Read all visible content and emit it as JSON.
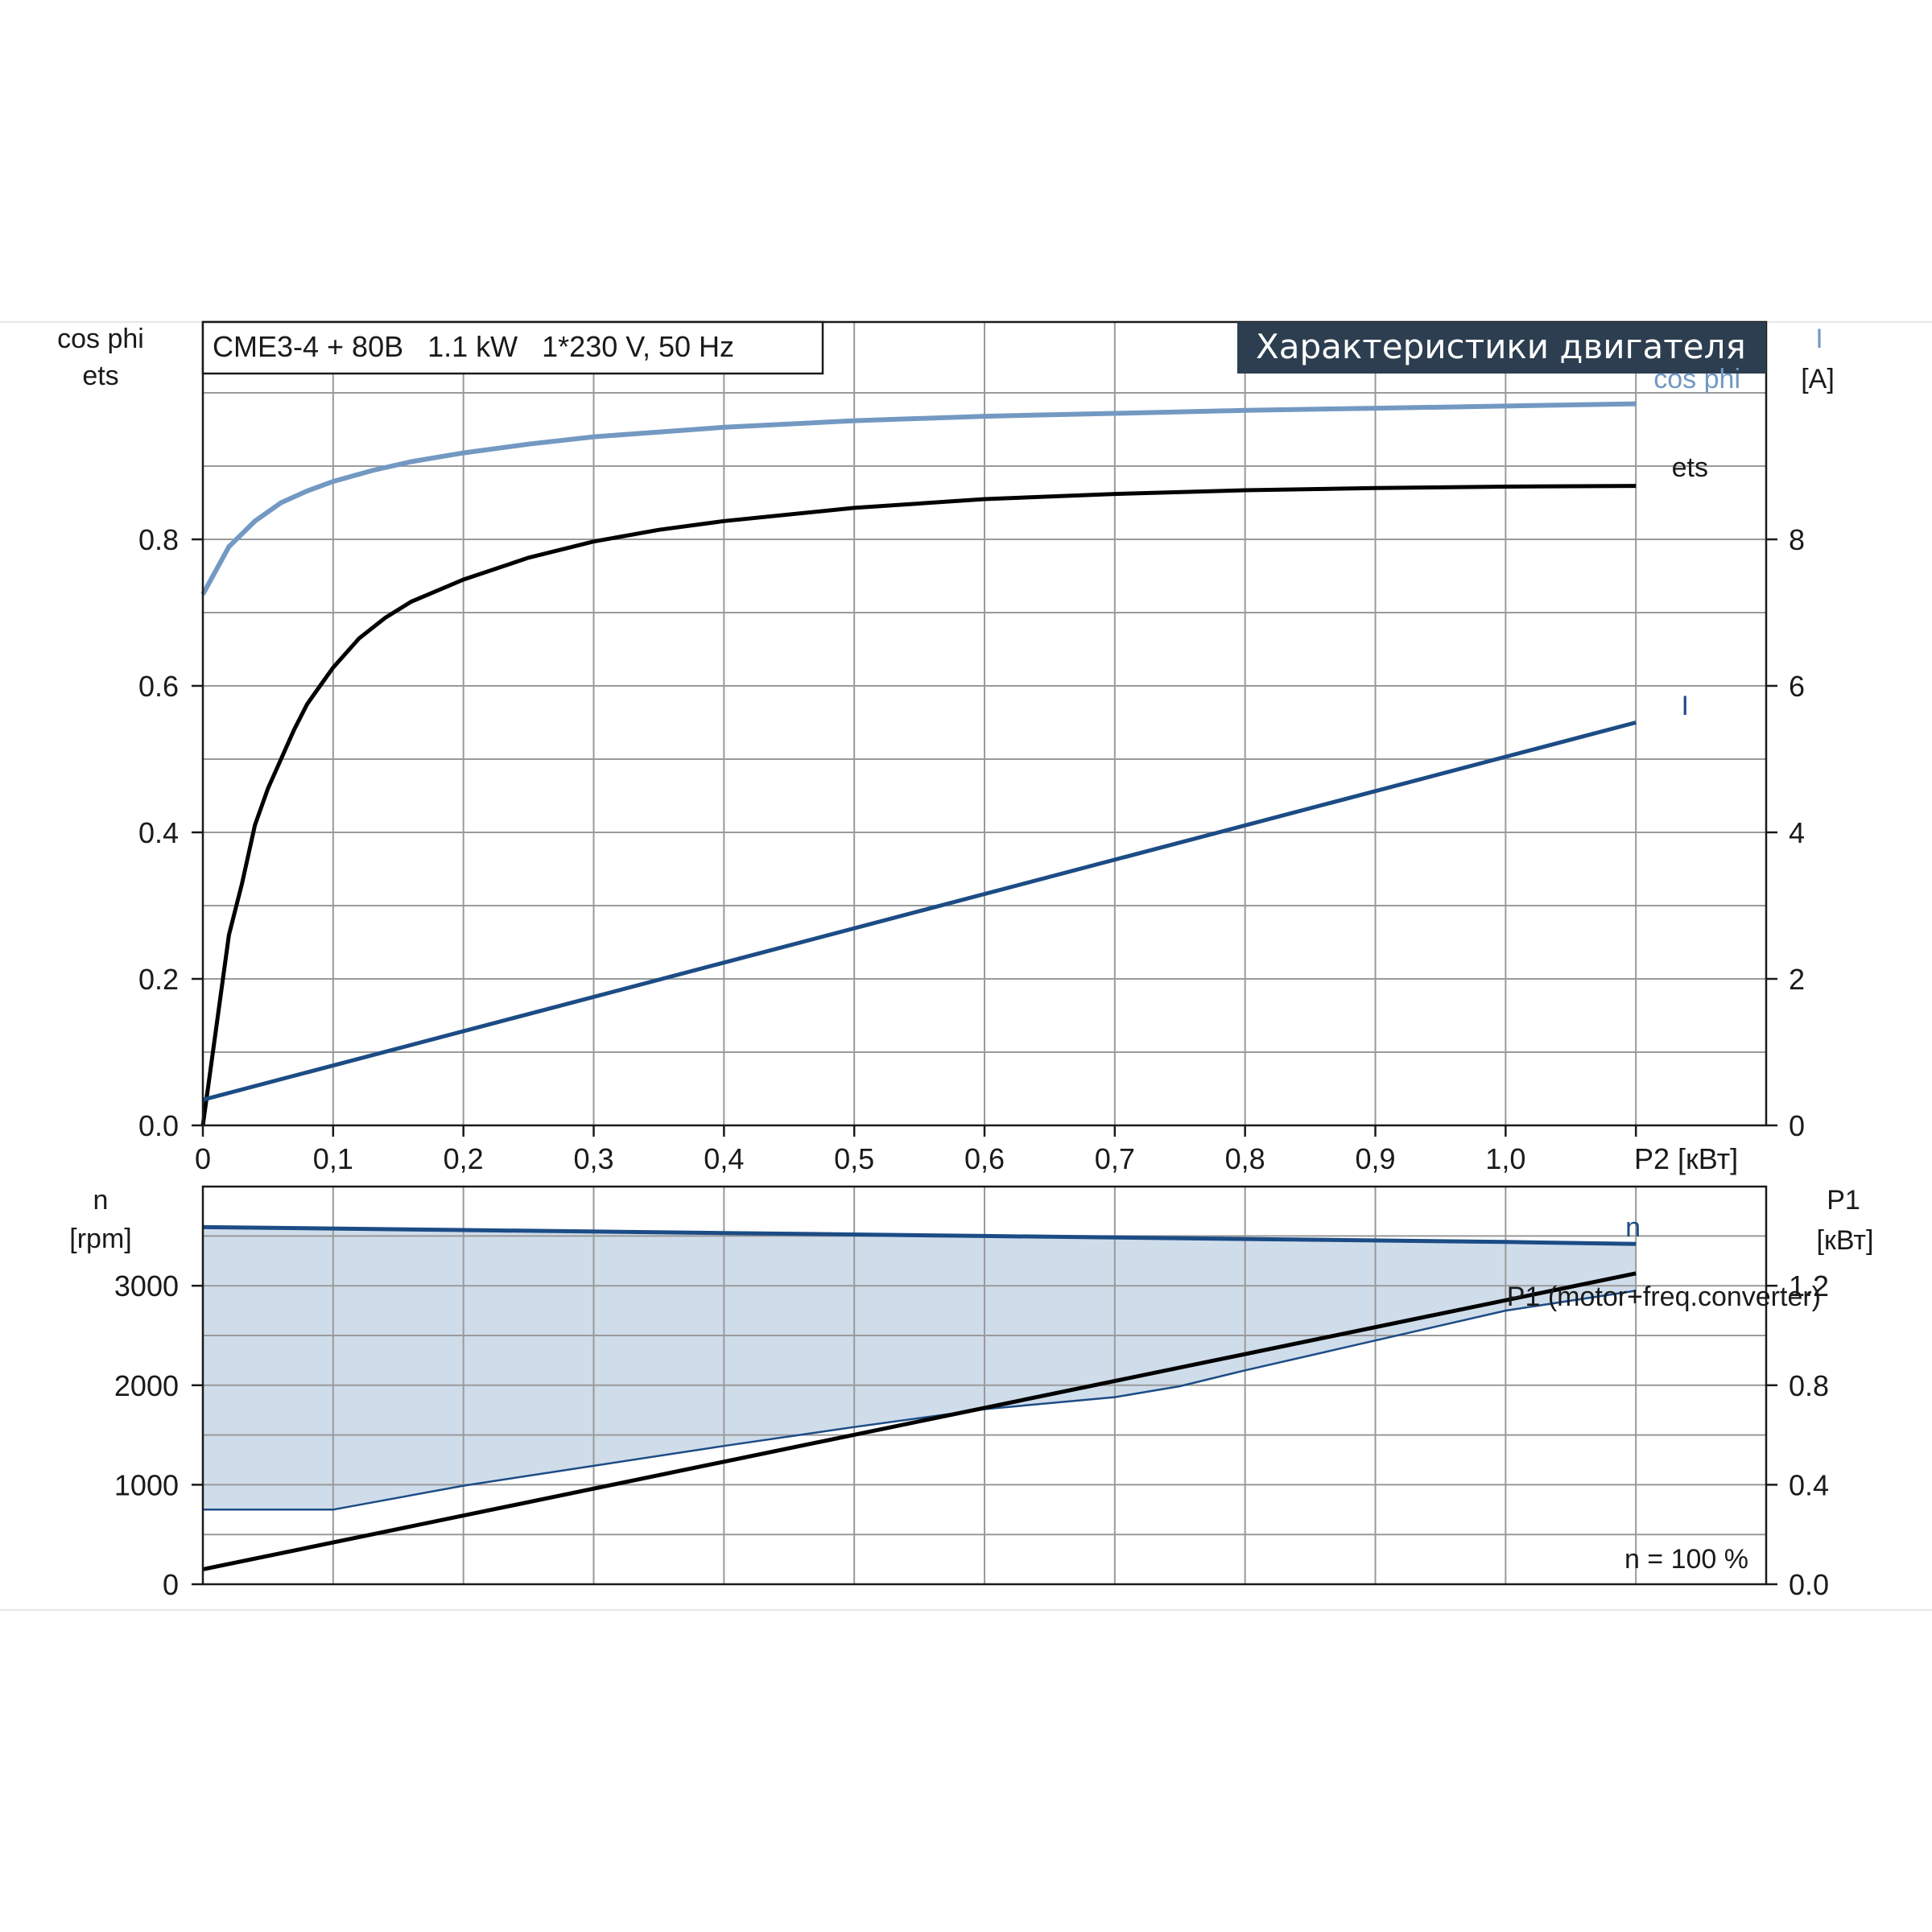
{
  "model_label": "CME3-4 + 80B   1.1 kW   1*230 V, 50 Hz",
  "panel_title": "Характеристики двигателя",
  "colors": {
    "cosphi": "#7399c2",
    "ets": "#000000",
    "current": "#1c4c85",
    "speed": "#1c4c85",
    "band_fill": "#cfdcea",
    "p1": "#000000",
    "title_bg": "#2c3e50",
    "grid": "#9a9a9a"
  },
  "chart_data": [
    {
      "type": "line",
      "title": "Характеристики двигателя",
      "xlabel": "P2 [кВт]",
      "x_tick_labels": [
        "0",
        "0,1",
        "0,2",
        "0,3",
        "0,4",
        "0,5",
        "0,6",
        "0,7",
        "0,8",
        "0,9",
        "1,0",
        "P2 [кВт]"
      ],
      "xlim": [
        0,
        1.2
      ],
      "y_left_label_lines": [
        "cos phi",
        "ets"
      ],
      "y_left_tick_labels": [
        "0.0",
        "0.2",
        "0.4",
        "0.6",
        "0.8"
      ],
      "y_left_lim": [
        0,
        1.0
      ],
      "y_right_label_lines": [
        "I",
        "[A]"
      ],
      "y_right_tick_labels": [
        "0",
        "2",
        "4",
        "6",
        "8"
      ],
      "y_right_lim": [
        0,
        10
      ],
      "grid": true,
      "series": [
        {
          "name": "cos phi",
          "axis": "left",
          "x": [
            0,
            0.02,
            0.04,
            0.06,
            0.08,
            0.1,
            0.13,
            0.16,
            0.2,
            0.25,
            0.3,
            0.4,
            0.5,
            0.6,
            0.7,
            0.8,
            0.9,
            1.0,
            1.1
          ],
          "y": [
            0.725,
            0.79,
            0.825,
            0.85,
            0.866,
            0.879,
            0.894,
            0.906,
            0.918,
            0.93,
            0.94,
            0.953,
            0.962,
            0.968,
            0.972,
            0.976,
            0.979,
            0.982,
            0.985
          ]
        },
        {
          "name": "ets",
          "axis": "left",
          "x": [
            0,
            0.01,
            0.02,
            0.03,
            0.04,
            0.05,
            0.06,
            0.07,
            0.08,
            0.09,
            0.1,
            0.12,
            0.14,
            0.16,
            0.18,
            0.2,
            0.25,
            0.3,
            0.35,
            0.4,
            0.5,
            0.6,
            0.7,
            0.8,
            0.9,
            1.0,
            1.1
          ],
          "y": [
            0,
            0.13,
            0.26,
            0.33,
            0.41,
            0.46,
            0.5,
            0.54,
            0.575,
            0.6,
            0.625,
            0.665,
            0.693,
            0.715,
            0.73,
            0.745,
            0.775,
            0.797,
            0.813,
            0.825,
            0.843,
            0.855,
            0.862,
            0.867,
            0.87,
            0.872,
            0.873
          ]
        },
        {
          "name": "I",
          "axis": "right",
          "x": [
            0,
            1.1
          ],
          "y": [
            0.35,
            5.5
          ]
        }
      ]
    },
    {
      "type": "area",
      "xlim": [
        0,
        1.2
      ],
      "y_left_label_lines": [
        "n",
        "[rpm]"
      ],
      "y_left_tick_labels": [
        "0",
        "1000",
        "2000",
        "3000"
      ],
      "y_left_lim": [
        0,
        4000
      ],
      "y_right_label_lines": [
        "P1",
        "[кВт]"
      ],
      "y_right_tick_labels": [
        "0.0",
        "0.4",
        "0.8",
        "1.2"
      ],
      "y_right_lim": [
        0,
        1.6
      ],
      "grid": true,
      "annotation": "n = 100 %",
      "series": [
        {
          "name": "n",
          "axis": "left",
          "x": [
            0,
            0.2,
            0.4,
            0.6,
            0.8,
            1.0,
            1.1
          ],
          "y": [
            3590,
            3560,
            3530,
            3500,
            3470,
            3440,
            3420
          ]
        },
        {
          "name": "P1 (motor+freq.converter)",
          "axis": "right",
          "x": [
            0,
            1.1
          ],
          "y": [
            0.06,
            1.25
          ]
        },
        {
          "name": "band-lower",
          "axis": "left",
          "x": [
            0,
            0.1,
            0.2,
            0.3,
            0.4,
            0.5,
            0.6,
            0.7,
            0.75,
            0.8,
            0.9,
            1.0,
            1.1
          ],
          "y": [
            750,
            750,
            990,
            1190,
            1390,
            1580,
            1760,
            1880,
            1990,
            2150,
            2450,
            2750,
            2950
          ]
        }
      ]
    }
  ]
}
